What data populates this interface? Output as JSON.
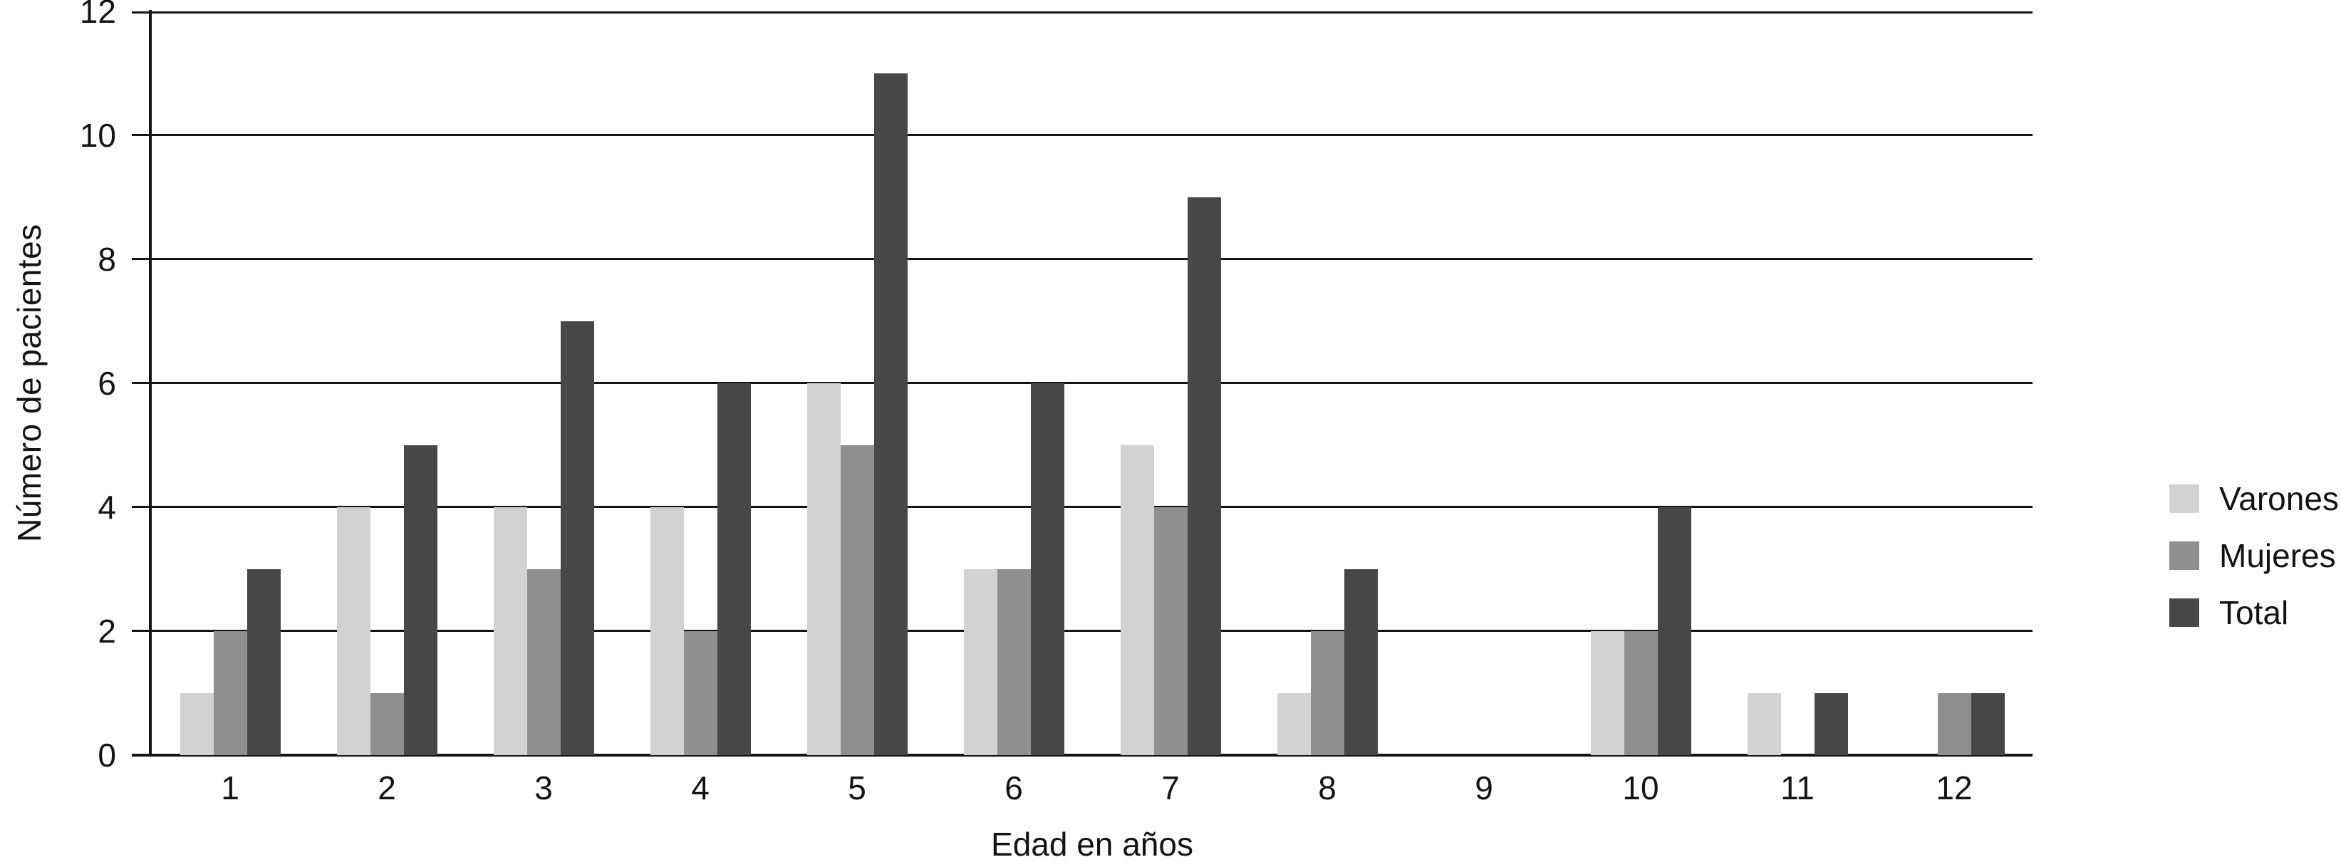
{
  "chart_data": {
    "type": "bar",
    "title": "",
    "xlabel": "Edad en años",
    "ylabel": "Número de pacientes",
    "categories": [
      "1",
      "2",
      "3",
      "4",
      "5",
      "6",
      "7",
      "8",
      "9",
      "10",
      "11",
      "12"
    ],
    "series": [
      {
        "name": "Varones",
        "color": "#d2d2d2",
        "values": [
          1,
          4,
          4,
          4,
          6,
          3,
          5,
          1,
          0,
          2,
          1,
          0
        ]
      },
      {
        "name": "Mujeres",
        "color": "#8f8f8f",
        "values": [
          2,
          1,
          3,
          2,
          5,
          3,
          4,
          2,
          0,
          2,
          0,
          1
        ]
      },
      {
        "name": "Total",
        "color": "#474747",
        "values": [
          3,
          5,
          7,
          6,
          11,
          6,
          9,
          3,
          0,
          4,
          1,
          1
        ]
      }
    ],
    "ylim": [
      0,
      12
    ],
    "yticks": [
      0,
      2,
      4,
      6,
      8,
      10,
      12
    ],
    "grid": true,
    "legend_position": "right",
    "axis_color": "#141414"
  }
}
